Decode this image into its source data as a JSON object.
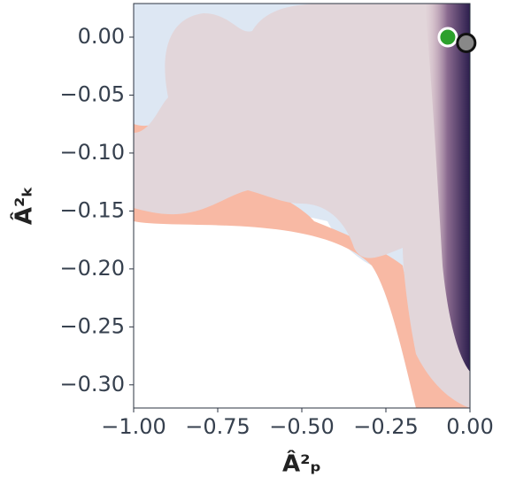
{
  "chart_data": {
    "type": "scatter",
    "xlabel": "Â²ₚ",
    "ylabel": "Â²ₖ",
    "series": [
      {
        "color": "#2ca02c",
        "edgecolor": "#ffffff",
        "x": [
          -0.066
        ],
        "values": [
          0.0
        ]
      },
      {
        "color": "#888888",
        "edgecolor": "#111111",
        "x": [
          -0.011
        ],
        "values": [
          -0.005
        ]
      }
    ],
    "xlim": [
      -1.0,
      0.0
    ],
    "xticks": [
      {
        "value": -1.0,
        "label": "−1.00"
      },
      {
        "value": -0.75,
        "label": "−0.75"
      },
      {
        "value": -0.5,
        "label": "−0.50"
      },
      {
        "value": -0.25,
        "label": "−0.25"
      },
      {
        "value": 0.0,
        "label": "0.00"
      }
    ],
    "ylim": [
      -0.32,
      0.029
    ],
    "yticks": [
      {
        "value": 0.0,
        "label": "0.00"
      },
      {
        "value": -0.05,
        "label": "−0.05"
      },
      {
        "value": -0.1,
        "label": "−0.10"
      },
      {
        "value": -0.15,
        "label": "−0.15"
      },
      {
        "value": -0.2,
        "label": "−0.20"
      },
      {
        "value": -0.25,
        "label": "−0.25"
      },
      {
        "value": -0.3,
        "label": "−0.30"
      }
    ]
  }
}
